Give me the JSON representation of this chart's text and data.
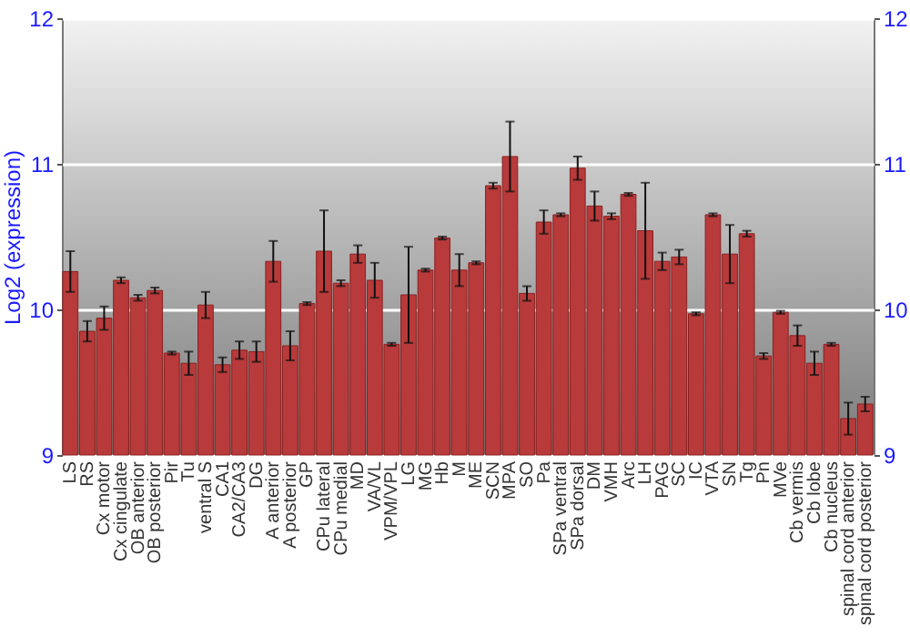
{
  "chart_data": {
    "type": "bar",
    "ylabel": "Log2 (expression)",
    "categories": [
      "LS",
      "RS",
      "Cx motor",
      "Cx cingulate",
      "OB anterior",
      "OB posterior",
      "Pir",
      "Tu",
      "ventral S",
      "CA1",
      "CA2/CA3",
      "DG",
      "A anterior",
      "A posterior",
      "GP",
      "CPu lateral",
      "CPu medial",
      "MD",
      "VA/VL",
      "VPM/VPL",
      "LG",
      "MG",
      "Hb",
      "M",
      "ME",
      "SCN",
      "MPA",
      "SO",
      "Pa",
      "SPa ventral",
      "SPa dorsal",
      "DM",
      "VMH",
      "Arc",
      "LH",
      "PAG",
      "SC",
      "IC",
      "VTA",
      "SN",
      "Tg",
      "Pn",
      "MVe",
      "Cb vermis",
      "Cb lobe",
      "Cb nucleus",
      "spinal cord anterior",
      "spinal cord posterior"
    ],
    "values": [
      10.26,
      9.85,
      9.94,
      10.2,
      10.08,
      10.13,
      9.7,
      9.63,
      10.03,
      9.62,
      9.72,
      9.71,
      10.33,
      9.75,
      10.04,
      10.4,
      10.18,
      10.38,
      10.2,
      9.76,
      10.1,
      10.27,
      10.49,
      10.27,
      10.32,
      10.85,
      11.05,
      10.11,
      10.6,
      10.65,
      10.97,
      10.71,
      10.64,
      10.79,
      10.54,
      10.33,
      10.36,
      9.97,
      10.65,
      10.38,
      10.52,
      9.68,
      9.98,
      9.82,
      9.63,
      9.76,
      9.25,
      9.35
    ],
    "errors": [
      0.14,
      0.07,
      0.08,
      0.02,
      0.02,
      0.02,
      0.01,
      0.08,
      0.09,
      0.05,
      0.06,
      0.07,
      0.14,
      0.1,
      0.01,
      0.28,
      0.02,
      0.06,
      0.12,
      0.01,
      0.33,
      0.01,
      0.01,
      0.11,
      0.01,
      0.02,
      0.24,
      0.05,
      0.08,
      0.01,
      0.08,
      0.1,
      0.02,
      0.01,
      0.33,
      0.06,
      0.05,
      0.01,
      0.01,
      0.2,
      0.02,
      0.02,
      0.01,
      0.07,
      0.08,
      0.01,
      0.11,
      0.05
    ],
    "color": "#b83a3a",
    "ylim": [
      9,
      12
    ],
    "yticks": [
      9,
      10,
      11,
      12
    ],
    "y2lim": [
      9,
      12
    ],
    "y2ticks": [
      9,
      10,
      11,
      12
    ],
    "grid": "y"
  }
}
